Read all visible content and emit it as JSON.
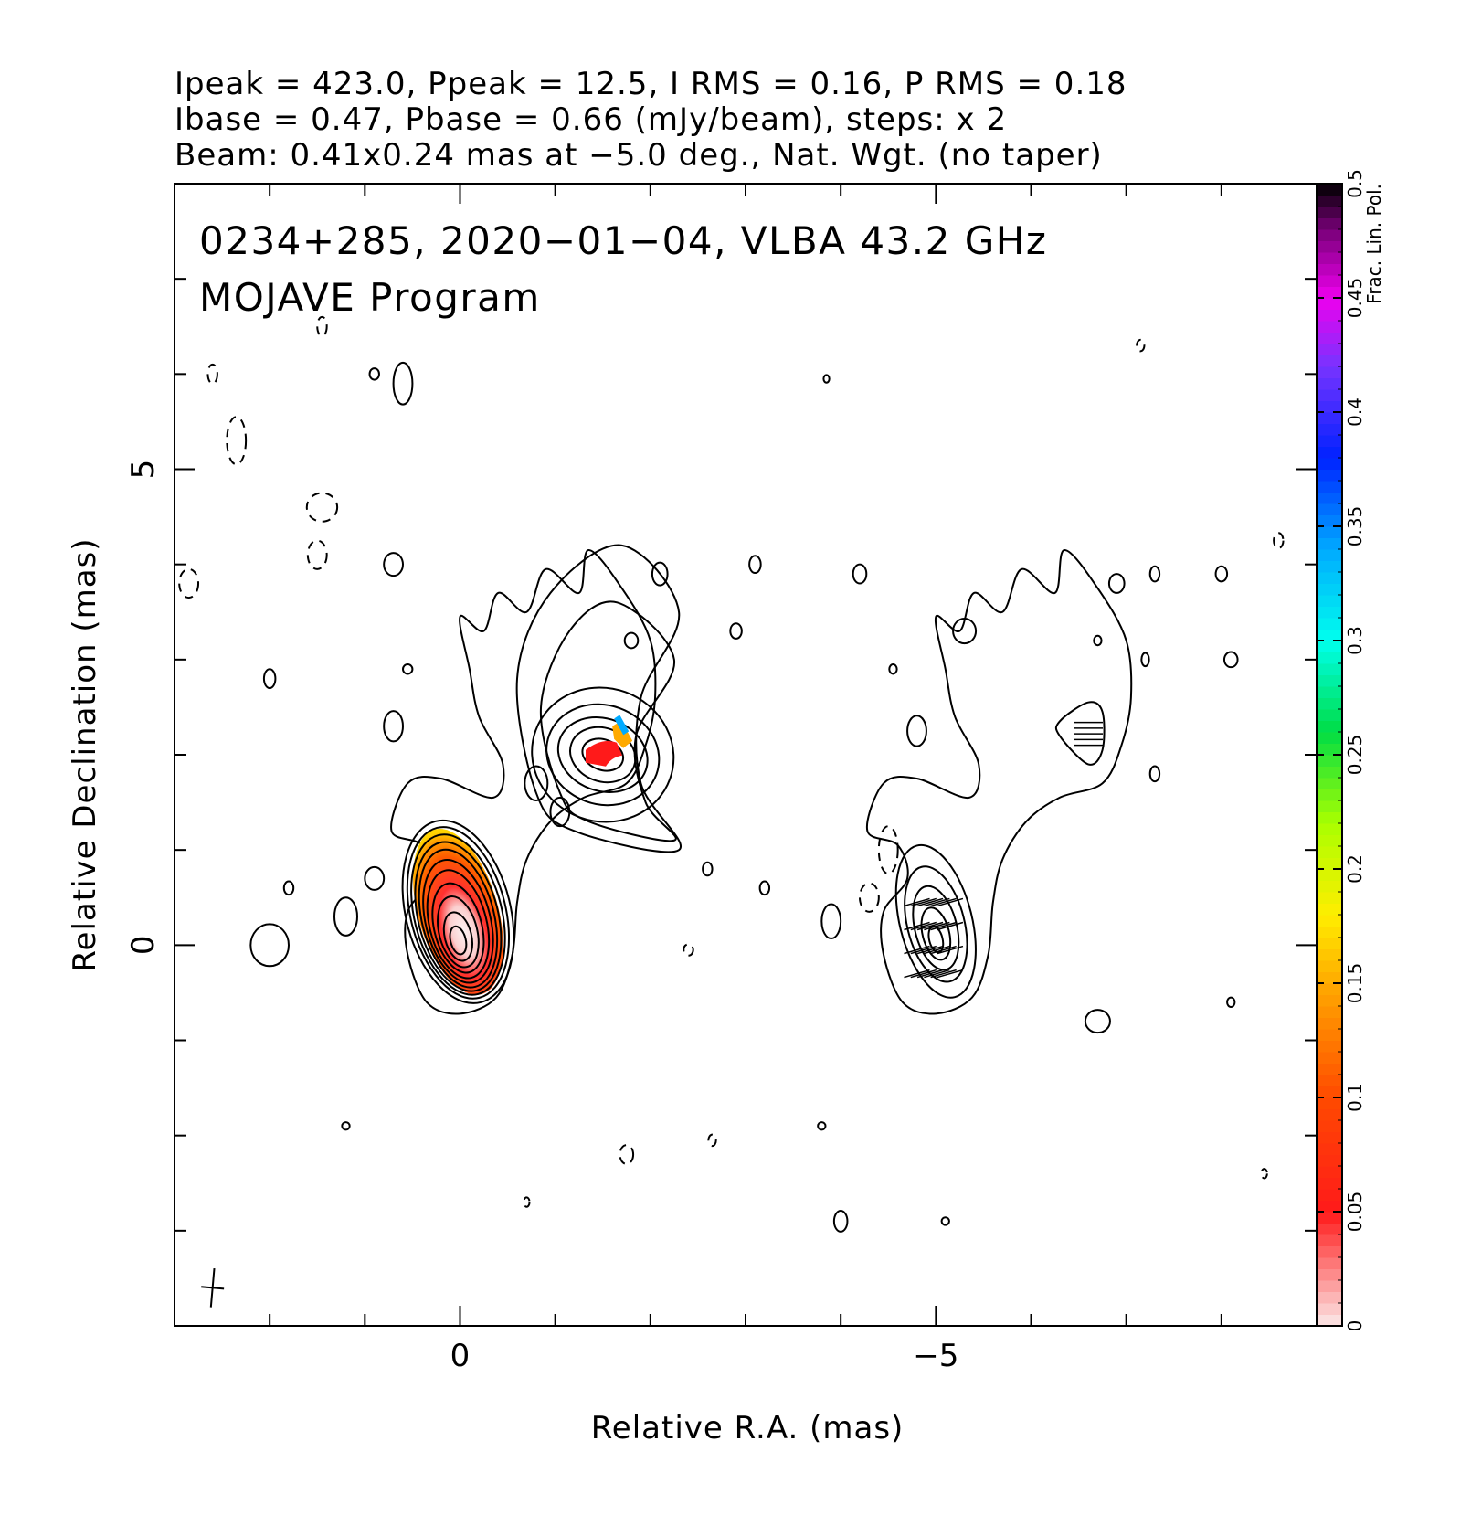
{
  "header": {
    "line1": "Ipeak = 423.0, Ppeak = 12.5, I RMS = 0.16, P RMS = 0.18",
    "line2": "Ibase = 0.47, Pbase = 0.66 (mJy/beam), steps: x 2",
    "line3": "Beam: 0.41x0.24 mas at −5.0 deg., Nat. Wgt. (no taper)"
  },
  "panel": {
    "title_line1": "0234+285, 2020−01−04, VLBA 43.2 GHz",
    "title_line2": "MOJAVE Program"
  },
  "chart_data": {
    "type": "contour",
    "xlabel": "Relative R.A. (mas)",
    "ylabel": "Relative Declination (mas)",
    "xlim": [
      3.0,
      -9.0
    ],
    "ylim": [
      -4.0,
      8.0
    ],
    "x_ticks": [
      0,
      -5
    ],
    "x_tick_labels": [
      "0",
      "−5"
    ],
    "y_ticks": [
      0,
      5
    ],
    "y_tick_labels": [
      "0",
      "5"
    ],
    "x_offset_right_panel": -5,
    "colorbar": {
      "label": "Frac. Lin. Pol.",
      "range": [
        0,
        0.5
      ],
      "ticks": [
        0,
        0.05,
        0.1,
        0.15,
        0.2,
        0.25,
        0.3,
        0.35,
        0.4,
        0.45,
        0.5
      ],
      "tick_labels": [
        "0",
        "0.05",
        "0.1",
        "0.15",
        "0.2",
        "0.25",
        "0.3",
        "0.35",
        "0.4",
        "0.45",
        "0.5"
      ],
      "stops": [
        [
          0.0,
          "#fbe8e8"
        ],
        [
          0.05,
          "#ff1a1a"
        ],
        [
          0.1,
          "#ff4a00"
        ],
        [
          0.15,
          "#ffaa00"
        ],
        [
          0.18,
          "#ffee00"
        ],
        [
          0.22,
          "#aaff00"
        ],
        [
          0.26,
          "#00dd44"
        ],
        [
          0.3,
          "#00ffee"
        ],
        [
          0.34,
          "#00aaff"
        ],
        [
          0.38,
          "#0022ff"
        ],
        [
          0.42,
          "#7733ff"
        ],
        [
          0.45,
          "#ee00ee"
        ],
        [
          0.48,
          "#770077"
        ],
        [
          0.5,
          "#000000"
        ]
      ]
    },
    "core": {
      "ra": 0.0,
      "dec": 0.0
    },
    "ipeak_mjy_per_beam": 423.0,
    "ppeak_mjy_per_beam": 12.5,
    "contour_base_mjy_per_beam": 0.47,
    "contour_step_factor": 2,
    "beam": {
      "major_mas": 0.41,
      "minor_mas": 0.24,
      "pa_deg": -5.0
    }
  }
}
